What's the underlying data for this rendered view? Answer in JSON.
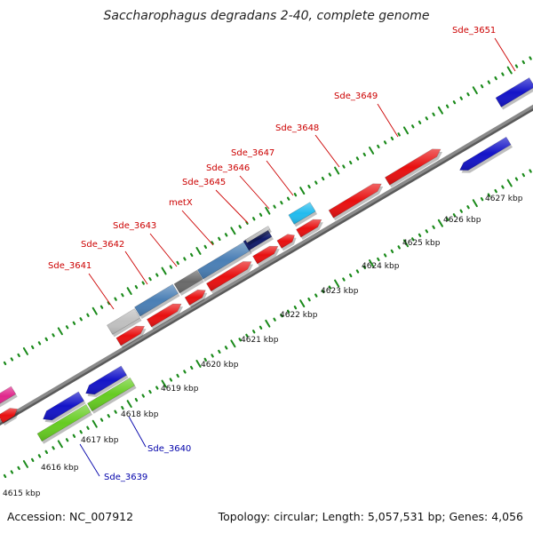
{
  "map": {
    "title": "Saccharophagus degradans 2-40, complete genome",
    "footer_left": "Accession: NC_007912",
    "footer_right": "Topology: circular; Length: 5,057,531 bp; Genes: 4,056"
  },
  "ticks": [
    {
      "label": "4615 kbp"
    },
    {
      "label": "4616 kbp"
    },
    {
      "label": "4617 kbp"
    },
    {
      "label": "4618 kbp"
    },
    {
      "label": "4619 kbp"
    },
    {
      "label": "4620 kbp"
    },
    {
      "label": "4621 kbp"
    },
    {
      "label": "4622 kbp"
    },
    {
      "label": "4623 kbp"
    },
    {
      "label": "4624 kbp"
    },
    {
      "label": "4625 kbp"
    },
    {
      "label": "4626 kbp"
    },
    {
      "label": "4627 kbp"
    }
  ],
  "forward_labels": [
    {
      "name": "Sde_3641",
      "color": "#cc0000"
    },
    {
      "name": "Sde_3642",
      "color": "#cc0000"
    },
    {
      "name": "Sde_3643",
      "color": "#cc0000"
    },
    {
      "name": "metX",
      "color": "#cc0000"
    },
    {
      "name": "Sde_3645",
      "color": "#cc0000"
    },
    {
      "name": "Sde_3646",
      "color": "#cc0000"
    },
    {
      "name": "Sde_3647",
      "color": "#cc0000"
    },
    {
      "name": "Sde_3648",
      "color": "#cc0000"
    },
    {
      "name": "Sde_3649",
      "color": "#cc0000"
    },
    {
      "name": "Sde_3651",
      "color": "#cc0000"
    }
  ],
  "reverse_labels": [
    {
      "name": "Sde_3640",
      "color": "#0000aa"
    },
    {
      "name": "Sde_3639",
      "color": "#0000aa"
    }
  ],
  "colors": {
    "backbone": "#8a8a8a",
    "tick_dots": "#1a8a1a",
    "forward_cds": "#e81010",
    "reverse_cds": "#1414c8",
    "trna_cds": "#66cc22",
    "grey_feature": "#c0c0c0",
    "steel_feature": "#4a7fb5",
    "dark_feature": "#6a6a6a",
    "cyan_feature": "#22bbee",
    "navy_feature": "#101a6a",
    "magenta_feature": "#e0288c"
  }
}
